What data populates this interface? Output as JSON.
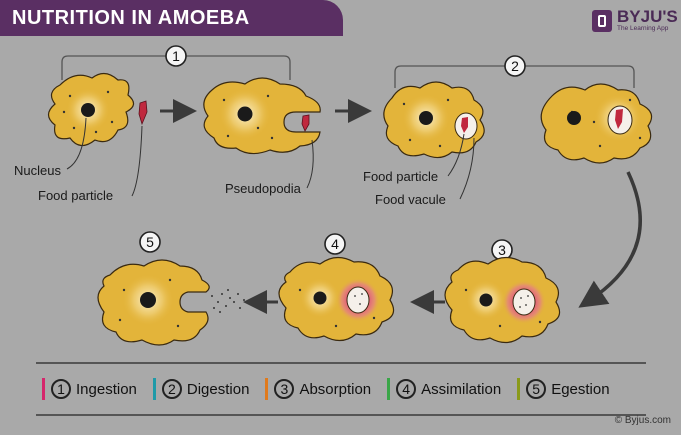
{
  "title": "NUTRITION IN AMOEBA",
  "brand": {
    "name": "BYJU'S",
    "tagline": "The Learning App"
  },
  "colors": {
    "background": "#a9a9a9",
    "banner": "#5a2f63",
    "amoeba_body": "#e3b43a",
    "amoeba_edge": "#3a2a10",
    "nucleus": "#1a1a1a",
    "food": "#c0283e",
    "digestion_glow": "#d9347a",
    "arrow": "#3a3a3a"
  },
  "step_badges": [
    "1",
    "2",
    "3",
    "4",
    "5"
  ],
  "labels": {
    "nucleus": "Nucleus",
    "food_particle_1": "Food particle",
    "pseudopodia": "Pseudopodia",
    "food_particle_2": "Food particle",
    "food_vacuole": "Food vacule"
  },
  "legend": [
    {
      "num": "1",
      "label": "Ingestion",
      "color": "#d6256b"
    },
    {
      "num": "2",
      "label": "Digestion",
      "color": "#1e9aa8"
    },
    {
      "num": "3",
      "label": "Absorption",
      "color": "#e07a1c"
    },
    {
      "num": "4",
      "label": "Assimilation",
      "color": "#3aa648"
    },
    {
      "num": "5",
      "label": "Egestion",
      "color": "#8a9a1a"
    }
  ],
  "copyright": "© Byjus.com"
}
